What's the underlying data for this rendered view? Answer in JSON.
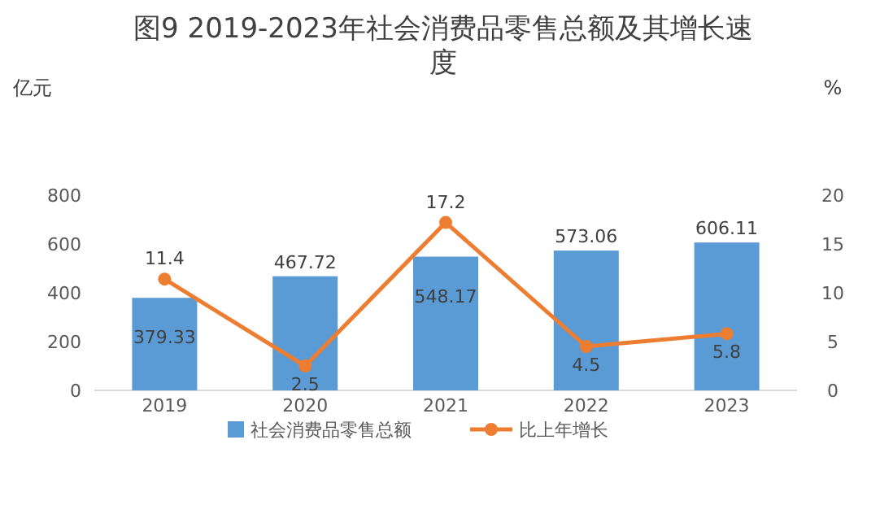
{
  "chart_data": {
    "type": "bar",
    "title": "图9   2019-2023年社会消费品零售总额及其增长速度",
    "ylabel": "亿元",
    "y2label": "%",
    "categories": [
      "2019",
      "2020",
      "2021",
      "2022",
      "2023"
    ],
    "series": [
      {
        "name": "社会消费品零售总额",
        "color": "#5b9bd5",
        "values": [
          379.33,
          467.72,
          548.17,
          573.06,
          606.11
        ]
      },
      {
        "name": "比上年增长",
        "type": "line",
        "axis": "y2",
        "color": "#ed7d31",
        "marker": "circle",
        "values": [
          11.4,
          2.5,
          17.2,
          4.5,
          5.8
        ]
      }
    ],
    "ylim": [
      0,
      800
    ],
    "yticks": [
      0,
      200,
      400,
      600,
      800
    ],
    "y2lim": [
      0,
      20
    ],
    "y2ticks": [
      0,
      5,
      10,
      15,
      20
    ],
    "data_labels": true,
    "legend": "bottom",
    "grid": false
  }
}
